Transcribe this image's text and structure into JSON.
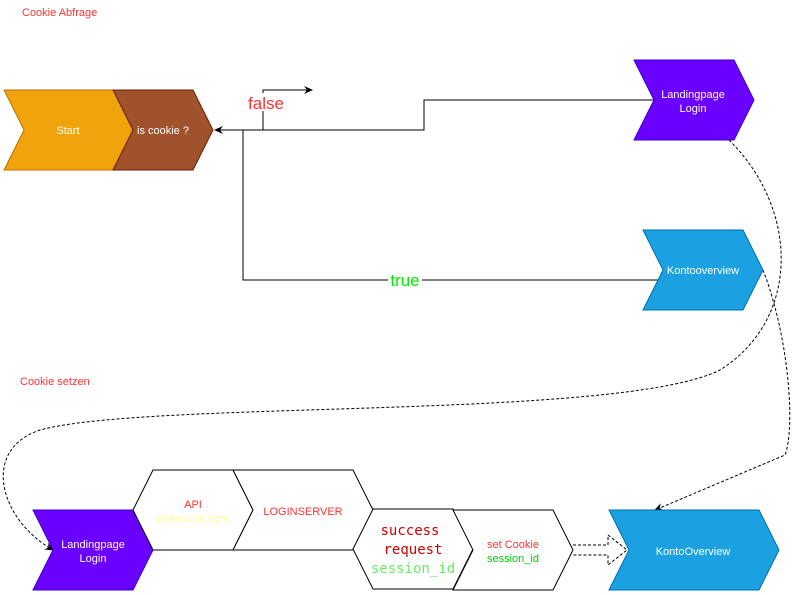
{
  "sections": {
    "cookie_check": "Cookie Abfrage",
    "cookie_set": "Cookie setzen"
  },
  "nodes": {
    "start": "Start",
    "is_cookie": "is cookie ?",
    "landing_top": [
      "Landingpage",
      "Login"
    ],
    "konto_top": "Kontooverview",
    "landing_bottom": [
      "Landingpage",
      "Login"
    ],
    "api": [
      "API",
      "unsecureLogin"
    ],
    "loginserver": "LOGINSERVER",
    "success": [
      "success",
      "request",
      "session_id"
    ],
    "set_cookie": [
      "set Cookie",
      "session_id"
    ],
    "konto_bottom": "KontoOverview"
  },
  "edges": {
    "false_label": "false",
    "true_label": "true"
  },
  "colors": {
    "start": "#f0a30a",
    "is_cookie": "#a0522d",
    "landing": "#6a00ff",
    "konto": "#1ba1e2",
    "red": "#ff3333",
    "green": "#00cc00",
    "yellow": "#ffff88"
  }
}
